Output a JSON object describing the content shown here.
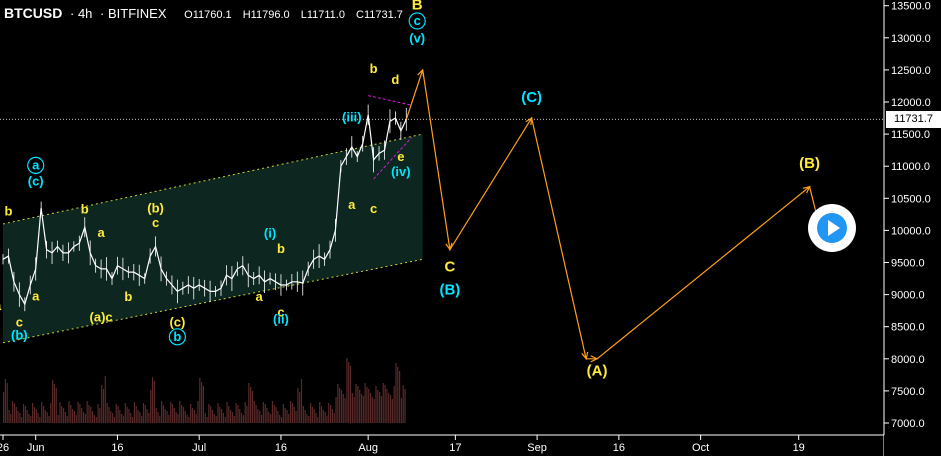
{
  "legend": {
    "symbol": "BTCUSD",
    "interval": "4h",
    "exchange": "BITFINEX",
    "o_label": "O",
    "o_value": "11760.1",
    "h_label": "H",
    "h_value": "11796.0",
    "l_label": "L",
    "l_value": "11711.0",
    "c_label": "C",
    "c_value": "11731.7"
  },
  "last_price": "11731.7",
  "chart_data": {
    "type": "line",
    "ylim": [
      6950,
      13600
    ],
    "y_ticks": [
      "13500.0",
      "13000.0",
      "12500.0",
      "12000.0",
      "11500.0",
      "11000.0",
      "10500.0",
      "10000.0",
      "9500.0",
      "9000.0",
      "8500.0",
      "8000.0",
      "7500.0",
      "7000.0"
    ],
    "y_tick_values": [
      13500,
      13000,
      12500,
      12000,
      11500,
      11000,
      10500,
      10000,
      9500,
      9000,
      8500,
      8000,
      7500,
      7000
    ],
    "x_ticks": [
      "26",
      "Jun",
      "16",
      "Jul",
      "16",
      "Aug",
      "17",
      "Sep",
      "16",
      "Oct",
      "19"
    ],
    "x_tick_dates": [
      "2020-05-26",
      "2020-06-01",
      "2020-06-16",
      "2020-07-01",
      "2020-07-16",
      "2020-08-01",
      "2020-08-17",
      "2020-09-01",
      "2020-09-16",
      "2020-10-01",
      "2020-10-19"
    ],
    "price_series": {
      "name": "BTCUSD",
      "points": [
        [
          "2020-05-26",
          9550
        ],
        [
          "2020-05-27",
          9600
        ],
        [
          "2020-05-28",
          9200
        ],
        [
          "2020-05-29",
          9000
        ],
        [
          "2020-05-30",
          8850
        ],
        [
          "2020-05-31",
          9150
        ],
        [
          "2020-06-01",
          9400
        ],
        [
          "2020-06-02",
          10350
        ],
        [
          "2020-06-03",
          9700
        ],
        [
          "2020-06-04",
          9650
        ],
        [
          "2020-06-05",
          9750
        ],
        [
          "2020-06-06",
          9650
        ],
        [
          "2020-06-07",
          9650
        ],
        [
          "2020-06-08",
          9750
        ],
        [
          "2020-06-09",
          9800
        ],
        [
          "2020-06-10",
          10050
        ],
        [
          "2020-06-11",
          9650
        ],
        [
          "2020-06-12",
          9450
        ],
        [
          "2020-06-13",
          9400
        ],
        [
          "2020-06-14",
          9400
        ],
        [
          "2020-06-15",
          9250
        ],
        [
          "2020-06-16",
          9450
        ],
        [
          "2020-06-17",
          9400
        ],
        [
          "2020-06-18",
          9350
        ],
        [
          "2020-06-19",
          9350
        ],
        [
          "2020-06-20",
          9300
        ],
        [
          "2020-06-21",
          9250
        ],
        [
          "2020-06-22",
          9600
        ],
        [
          "2020-06-23",
          9750
        ],
        [
          "2020-06-24",
          9400
        ],
        [
          "2020-06-25",
          9250
        ],
        [
          "2020-06-26",
          9150
        ],
        [
          "2020-06-27",
          9050
        ],
        [
          "2020-06-28",
          9100
        ],
        [
          "2020-06-29",
          9150
        ],
        [
          "2020-06-30",
          9100
        ],
        [
          "2020-07-01",
          9150
        ],
        [
          "2020-07-02",
          9100
        ],
        [
          "2020-07-03",
          9050
        ],
        [
          "2020-07-04",
          9050
        ],
        [
          "2020-07-05",
          9100
        ],
        [
          "2020-07-06",
          9300
        ],
        [
          "2020-07-07",
          9250
        ],
        [
          "2020-07-08",
          9400
        ],
        [
          "2020-07-09",
          9450
        ],
        [
          "2020-07-10",
          9300
        ],
        [
          "2020-07-11",
          9250
        ],
        [
          "2020-07-12",
          9300
        ],
        [
          "2020-07-13",
          9200
        ],
        [
          "2020-07-14",
          9250
        ],
        [
          "2020-07-15",
          9200
        ],
        [
          "2020-07-16",
          9150
        ],
        [
          "2020-07-17",
          9150
        ],
        [
          "2020-07-18",
          9200
        ],
        [
          "2020-07-19",
          9200
        ],
        [
          "2020-07-20",
          9180
        ],
        [
          "2020-07-21",
          9400
        ],
        [
          "2020-07-22",
          9550
        ],
        [
          "2020-07-23",
          9600
        ],
        [
          "2020-07-24",
          9550
        ],
        [
          "2020-07-25",
          9700
        ],
        [
          "2020-07-26",
          10000
        ],
        [
          "2020-07-27",
          11000
        ],
        [
          "2020-07-28",
          11150
        ],
        [
          "2020-07-29",
          11300
        ],
        [
          "2020-07-30",
          11150
        ],
        [
          "2020-07-31",
          11350
        ],
        [
          "2020-08-01",
          11800
        ],
        [
          "2020-08-02",
          11100
        ],
        [
          "2020-08-03",
          11200
        ],
        [
          "2020-08-04",
          11250
        ],
        [
          "2020-08-05",
          11700
        ],
        [
          "2020-08-06",
          11750
        ],
        [
          "2020-08-07",
          11550
        ],
        [
          "2020-08-08",
          11730
        ]
      ]
    },
    "forecast": {
      "name": "projection",
      "points": [
        [
          "2020-08-08",
          11730
        ],
        [
          "2020-08-11",
          12500
        ],
        [
          "2020-08-16",
          9700
        ],
        [
          "2020-08-31",
          11750
        ],
        [
          "2020-09-10",
          8000
        ],
        [
          "2020-09-12",
          8000
        ],
        [
          "2020-10-21",
          10680
        ],
        [
          "2020-10-23",
          10000
        ]
      ]
    },
    "channel": {
      "upper": [
        [
          "2020-05-26",
          10100
        ],
        [
          "2020-08-11",
          11500
        ]
      ],
      "lower": [
        [
          "2020-05-26",
          8250
        ],
        [
          "2020-08-11",
          9550
        ]
      ]
    },
    "wave_labels": [
      {
        "text": "b",
        "date": "2020-05-27",
        "price": 10230,
        "color": "yellow"
      },
      {
        "text": "a",
        "date": "2020-05-25",
        "price": 8760,
        "color": "yellow"
      },
      {
        "text": "c",
        "date": "2020-05-29",
        "price": 8500,
        "color": "yellow"
      },
      {
        "text": "(b)",
        "date": "2020-05-29",
        "price": 8300,
        "color": "cyan"
      },
      {
        "text": "a",
        "date": "2020-06-01",
        "price": 10950,
        "color": "cyan",
        "circle": true
      },
      {
        "text": "(c)",
        "date": "2020-06-01",
        "price": 10700,
        "color": "cyan"
      },
      {
        "text": "a",
        "date": "2020-06-01",
        "price": 8910,
        "color": "yellow"
      },
      {
        "text": "b",
        "date": "2020-06-10",
        "price": 10260,
        "color": "yellow"
      },
      {
        "text": "a",
        "date": "2020-06-13",
        "price": 9900,
        "color": "yellow"
      },
      {
        "text": "(a)c",
        "date": "2020-06-13",
        "price": 8580,
        "color": "yellow"
      },
      {
        "text": "b",
        "date": "2020-06-18",
        "price": 8900,
        "color": "yellow"
      },
      {
        "text": "(b)",
        "date": "2020-06-23",
        "price": 10280,
        "color": "yellow"
      },
      {
        "text": "c",
        "date": "2020-06-23",
        "price": 10050,
        "color": "yellow"
      },
      {
        "text": "(c)",
        "date": "2020-06-27",
        "price": 8500,
        "color": "yellow"
      },
      {
        "text": "b",
        "date": "2020-06-27",
        "price": 8280,
        "color": "cyan",
        "circle": true
      },
      {
        "text": "(i)",
        "date": "2020-07-14",
        "price": 9890,
        "color": "cyan"
      },
      {
        "text": "b",
        "date": "2020-07-16",
        "price": 9650,
        "color": "yellow"
      },
      {
        "text": "a",
        "date": "2020-07-12",
        "price": 8900,
        "color": "yellow"
      },
      {
        "text": "c",
        "date": "2020-07-16",
        "price": 8660,
        "color": "yellow"
      },
      {
        "text": "(ii)",
        "date": "2020-07-16",
        "price": 8550,
        "color": "cyan"
      },
      {
        "text": "(iii)",
        "date": "2020-07-29",
        "price": 11700,
        "color": "cyan"
      },
      {
        "text": "a",
        "date": "2020-07-29",
        "price": 10330,
        "color": "yellow"
      },
      {
        "text": "b",
        "date": "2020-08-02",
        "price": 12450,
        "color": "yellow"
      },
      {
        "text": "c",
        "date": "2020-08-02",
        "price": 10270,
        "color": "yellow"
      },
      {
        "text": "d",
        "date": "2020-08-06",
        "price": 12280,
        "color": "yellow"
      },
      {
        "text": "e",
        "date": "2020-08-07",
        "price": 11080,
        "color": "yellow"
      },
      {
        "text": "(iv)",
        "date": "2020-08-07",
        "price": 10850,
        "color": "cyan"
      },
      {
        "text": "B",
        "date": "2020-08-10",
        "price": 13440,
        "color": "yellow"
      },
      {
        "text": "c",
        "date": "2020-08-10",
        "price": 13200,
        "color": "cyan",
        "circle": true
      },
      {
        "text": "(v)",
        "date": "2020-08-10",
        "price": 12930,
        "color": "cyan"
      },
      {
        "text": "C",
        "date": "2020-08-16",
        "price": 9360,
        "color": "yellow"
      },
      {
        "text": "(B)",
        "date": "2020-08-16",
        "price": 9000,
        "color": "cyan"
      },
      {
        "text": "(C)",
        "date": "2020-08-31",
        "price": 12000,
        "color": "cyan"
      },
      {
        "text": "(A)",
        "date": "2020-09-12",
        "price": 7740,
        "color": "yellow"
      },
      {
        "text": "(B)",
        "date": "2020-10-21",
        "price": 10970,
        "color": "yellow"
      }
    ],
    "grid": false,
    "colors": {
      "background": "#000000",
      "price": "#ffffff",
      "channel_fill": "#0e2a24",
      "channel_line": "#c8d23a",
      "forecast": "#ff9f1a",
      "yellow": "#ffeb3b",
      "cyan": "#00e5ff",
      "triangle": "#d81bd8",
      "volume": "#5a2a2a",
      "axis_text": "#ffffff",
      "dotted_price_line": "#ffffff"
    }
  }
}
